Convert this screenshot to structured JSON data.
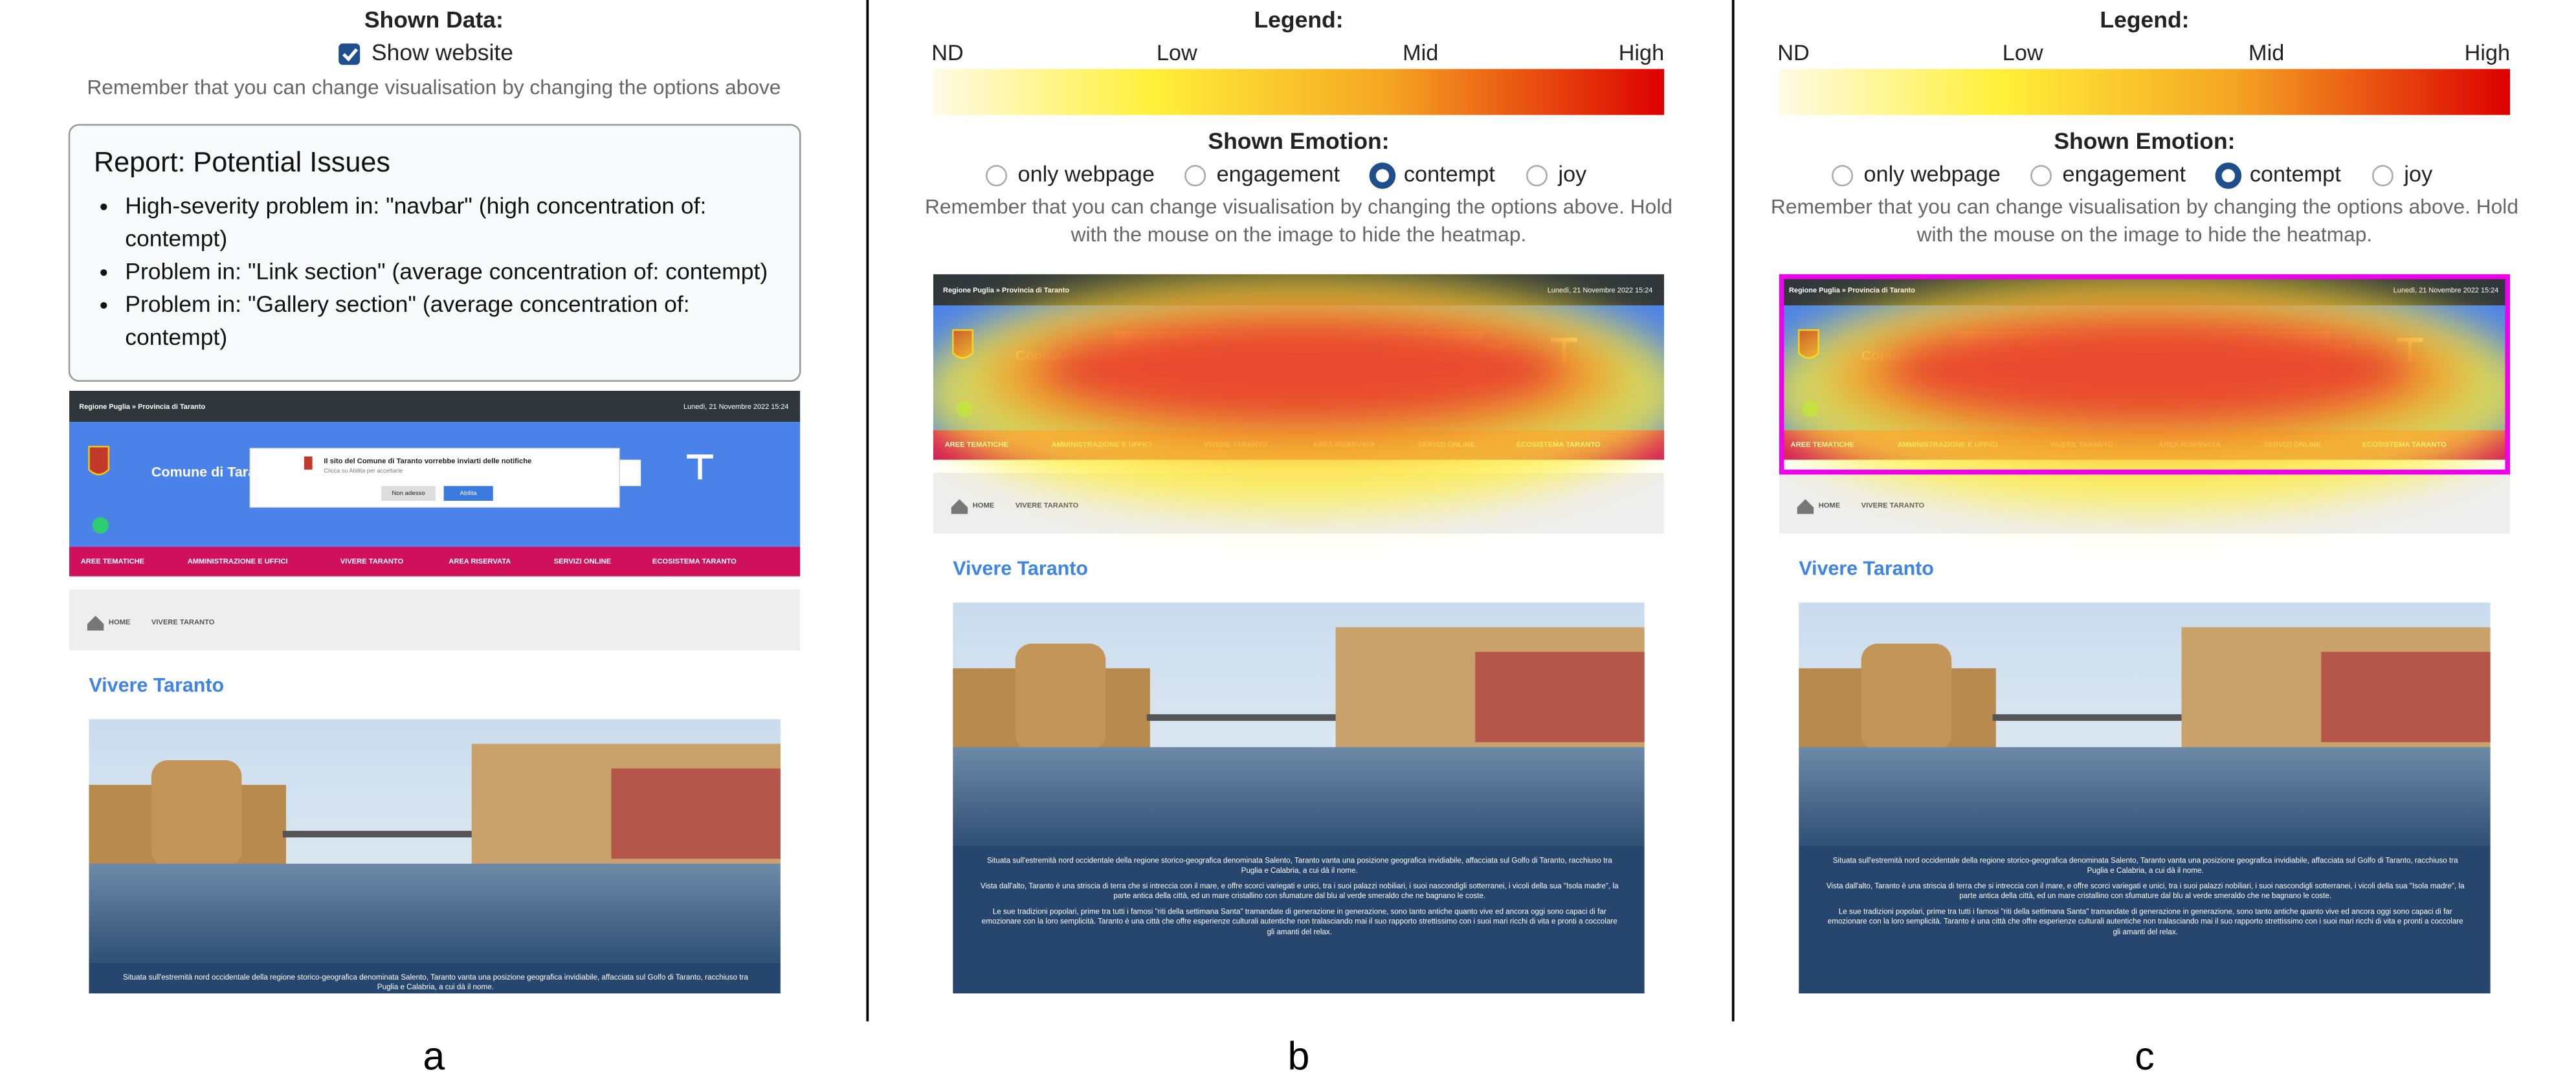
{
  "panels": [
    {
      "label": "a",
      "shown_data_title": "Shown Data:",
      "checkbox_label": "Show website",
      "hint": "Remember that you can change visualisation by changing the options above",
      "report": {
        "title": "Report: Potential Issues",
        "items": [
          "High-severity problem in: \"navbar\" (high concentration of: contempt)",
          "Problem in: \"Link section\" (average concentration of: contempt)",
          "Problem in: \"Gallery section\" (average concentration of: contempt)"
        ]
      }
    },
    {
      "label": "b",
      "legend": {
        "title": "Legend:",
        "labels": [
          "ND",
          "Low",
          "Mid",
          "High"
        ]
      },
      "emotion": {
        "title": "Shown Emotion:",
        "options": [
          "only webpage",
          "engagement",
          "contempt",
          "joy"
        ],
        "selected": 2
      },
      "hint": "Remember that you can change visualisation by changing the options above. Hold with the mouse on the image to hide the heatmap."
    },
    {
      "label": "c",
      "legend": {
        "title": "Legend:",
        "labels": [
          "ND",
          "Low",
          "Mid",
          "High"
        ]
      },
      "emotion": {
        "title": "Shown Emotion:",
        "options": [
          "only webpage",
          "engagement",
          "contempt",
          "joy"
        ],
        "selected": 2
      },
      "hint": "Remember that you can change visualisation by changing the options above. Hold with the mouse on the image to hide the heatmap."
    }
  ],
  "website": {
    "top_left": "Regione Puglia » Provincia di Taranto",
    "top_right": "Lunedì, 21 Novembre 2022 15:24",
    "site_name": "Comune di Taranto",
    "notification": "Il sito del Comune di Taranto vorrebbe inviarti delle notifiche",
    "notification_sub": "Clicca su Abilita per accettarle",
    "btn_later": "Non adesso",
    "btn_enable": "Abilita",
    "nav": [
      "AREE TEMATICHE",
      "AMMINISTRAZIONE E UFFICI",
      "VIVERE TARANTO",
      "AREA RISERVATA",
      "SERVIZI ONLINE",
      "ECOSISTEMA TARANTO"
    ],
    "breadcrumb": [
      "HOME",
      "VIVERE TARANTO"
    ],
    "page_title": "Vivere Taranto",
    "paragraphs": [
      "Situata sull'estremità nord occidentale della regione storico-geografica denominata Salento, Taranto vanta una posizione geografica invidiabile, affacciata sul Golfo di Taranto, racchiuso tra Puglia e Calabria, a cui dà il nome.",
      "Vista dall'alto, Taranto è una striscia di terra che si intreccia con il mare, e offre scorci variegati e unici, tra i suoi palazzi nobiliari, i suoi nascondigli sotterranei, i vicoli della sua \"Isola madre\", la parte antica della città, ed un mare cristallino con sfumature dal blu al verde smeraldo che ne bagnano le coste.",
      "Le sue tradizioni popolari, prime tra tutti i famosi \"riti della settimana Santa\" tramandate di generazione in generazione, sono tanto antiche quanto vive ed ancora oggi sono capaci di far emozionare con la loro semplicità. Taranto è una città che offre esperienze culturali autentiche non tralasciando mai il suo rapporto strettissimo con i suoi mari ricchi di vita e pronti a coccolare gli amanti del relax."
    ]
  }
}
